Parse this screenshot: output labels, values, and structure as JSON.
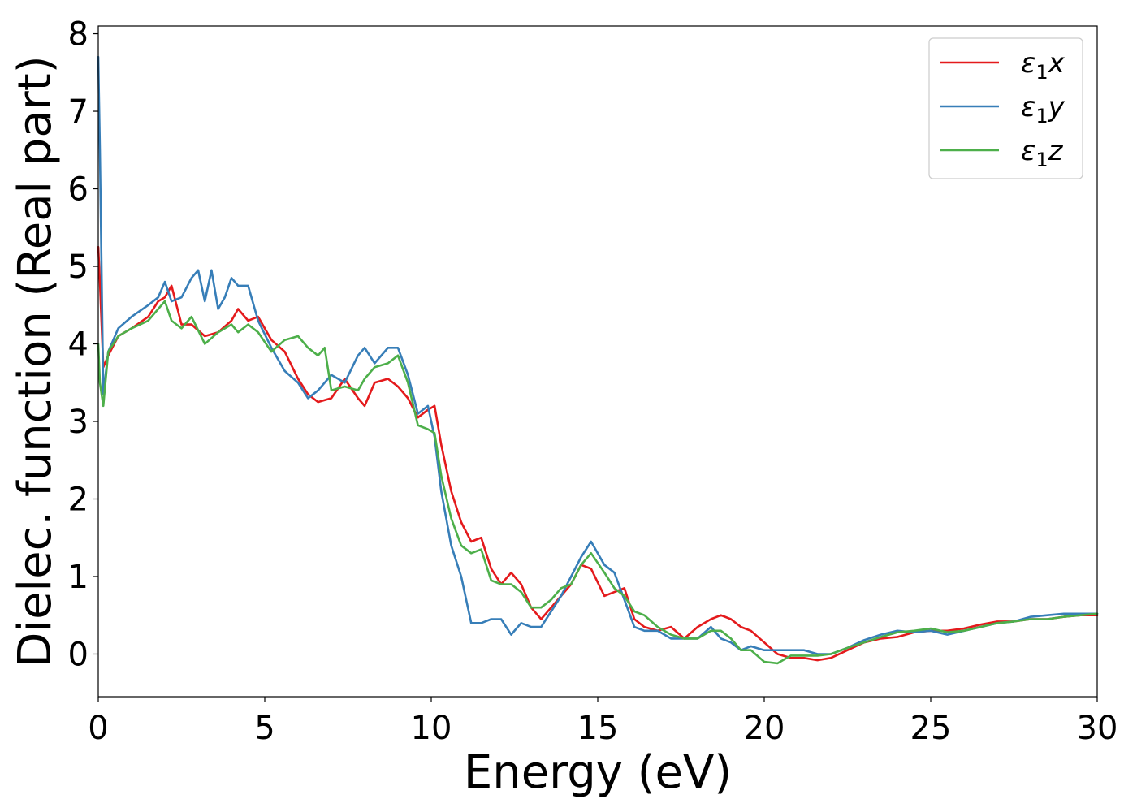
{
  "chart_data": {
    "type": "line",
    "title": "",
    "xlabel": "Energy (eV)",
    "ylabel": "Dielec. function (Real part)",
    "xlim": [
      0,
      30
    ],
    "ylim": [
      -0.55,
      8.1
    ],
    "xticks": [
      0,
      5,
      10,
      15,
      20,
      25,
      30
    ],
    "yticks": [
      0,
      1,
      2,
      3,
      4,
      5,
      6,
      7,
      8
    ],
    "grid": false,
    "legend_position": "top-right",
    "series": [
      {
        "name": "ε1x",
        "legend_main": "ε",
        "legend_sub": "1",
        "legend_suffix": "x",
        "color": "#e41a1c",
        "x": [
          0,
          0.05,
          0.15,
          0.3,
          0.6,
          1.0,
          1.5,
          1.8,
          2.0,
          2.2,
          2.5,
          2.8,
          3.2,
          3.6,
          4.0,
          4.2,
          4.5,
          4.8,
          5.2,
          5.6,
          6.0,
          6.3,
          6.6,
          7.0,
          7.4,
          7.8,
          8.0,
          8.3,
          8.7,
          9.0,
          9.3,
          9.6,
          9.9,
          10.1,
          10.3,
          10.6,
          10.9,
          11.2,
          11.5,
          11.8,
          12.1,
          12.4,
          12.7,
          13.0,
          13.3,
          13.6,
          13.9,
          14.2,
          14.5,
          14.8,
          15.2,
          15.5,
          15.8,
          16.1,
          16.4,
          16.8,
          17.2,
          17.6,
          18.0,
          18.4,
          18.7,
          19.0,
          19.3,
          19.6,
          20.0,
          20.4,
          20.8,
          21.2,
          21.6,
          22.0,
          22.5,
          23.0,
          23.5,
          24.0,
          24.5,
          25.0,
          25.5,
          26.0,
          26.5,
          27.0,
          27.5,
          28.0,
          28.5,
          29.0,
          29.5,
          30.0
        ],
        "y": [
          5.25,
          4.8,
          3.7,
          3.85,
          4.1,
          4.2,
          4.35,
          4.55,
          4.6,
          4.75,
          4.25,
          4.25,
          4.1,
          4.15,
          4.3,
          4.45,
          4.3,
          4.35,
          4.05,
          3.9,
          3.55,
          3.35,
          3.25,
          3.3,
          3.55,
          3.3,
          3.2,
          3.5,
          3.55,
          3.45,
          3.3,
          3.05,
          3.15,
          3.2,
          2.7,
          2.1,
          1.7,
          1.45,
          1.5,
          1.1,
          0.9,
          1.05,
          0.9,
          0.6,
          0.45,
          0.6,
          0.75,
          0.9,
          1.15,
          1.1,
          0.75,
          0.8,
          0.85,
          0.45,
          0.35,
          0.3,
          0.35,
          0.2,
          0.35,
          0.45,
          0.5,
          0.45,
          0.35,
          0.3,
          0.15,
          0.0,
          -0.05,
          -0.05,
          -0.08,
          -0.05,
          0.05,
          0.15,
          0.2,
          0.22,
          0.28,
          0.3,
          0.3,
          0.33,
          0.38,
          0.42,
          0.42,
          0.45,
          0.45,
          0.48,
          0.5,
          0.5
        ]
      },
      {
        "name": "ε1y",
        "legend_main": "ε",
        "legend_sub": "1",
        "legend_suffix": "y",
        "color": "#377eb8",
        "x": [
          0,
          0.05,
          0.15,
          0.3,
          0.6,
          1.0,
          1.5,
          1.8,
          2.0,
          2.2,
          2.5,
          2.8,
          3.0,
          3.2,
          3.4,
          3.6,
          3.8,
          4.0,
          4.2,
          4.5,
          4.8,
          5.2,
          5.6,
          6.0,
          6.3,
          6.6,
          7.0,
          7.4,
          7.8,
          8.0,
          8.3,
          8.7,
          9.0,
          9.3,
          9.6,
          9.9,
          10.1,
          10.3,
          10.6,
          10.9,
          11.2,
          11.5,
          11.8,
          12.1,
          12.4,
          12.7,
          13.0,
          13.3,
          13.6,
          13.9,
          14.2,
          14.5,
          14.8,
          15.2,
          15.5,
          15.8,
          16.1,
          16.4,
          16.8,
          17.2,
          17.6,
          18.0,
          18.4,
          18.7,
          19.0,
          19.3,
          19.6,
          20.0,
          20.4,
          20.8,
          21.2,
          21.6,
          22.0,
          22.5,
          23.0,
          23.5,
          24.0,
          24.5,
          25.0,
          25.5,
          26.0,
          26.5,
          27.0,
          27.5,
          28.0,
          28.5,
          29.0,
          29.5,
          30.0
        ],
        "y": [
          7.7,
          6.5,
          3.35,
          3.9,
          4.2,
          4.35,
          4.5,
          4.6,
          4.8,
          4.55,
          4.6,
          4.85,
          4.95,
          4.55,
          4.95,
          4.45,
          4.6,
          4.85,
          4.75,
          4.75,
          4.3,
          3.95,
          3.65,
          3.5,
          3.3,
          3.4,
          3.6,
          3.5,
          3.85,
          3.95,
          3.75,
          3.95,
          3.95,
          3.6,
          3.1,
          3.2,
          2.8,
          2.1,
          1.4,
          1.0,
          0.4,
          0.4,
          0.45,
          0.45,
          0.25,
          0.4,
          0.35,
          0.35,
          0.55,
          0.75,
          1.0,
          1.25,
          1.45,
          1.15,
          1.05,
          0.7,
          0.35,
          0.3,
          0.3,
          0.2,
          0.2,
          0.2,
          0.35,
          0.2,
          0.15,
          0.05,
          0.1,
          0.05,
          0.05,
          0.05,
          0.05,
          0.0,
          0.0,
          0.08,
          0.18,
          0.25,
          0.3,
          0.28,
          0.3,
          0.25,
          0.3,
          0.35,
          0.4,
          0.42,
          0.48,
          0.5,
          0.52,
          0.52,
          0.52
        ]
      },
      {
        "name": "ε1z",
        "legend_main": "ε",
        "legend_sub": "1",
        "legend_suffix": "z",
        "color": "#4daf4a",
        "x": [
          0,
          0.05,
          0.15,
          0.3,
          0.6,
          1.0,
          1.5,
          1.8,
          2.0,
          2.2,
          2.5,
          2.8,
          3.2,
          3.6,
          4.0,
          4.2,
          4.5,
          4.8,
          5.2,
          5.6,
          6.0,
          6.3,
          6.6,
          6.8,
          7.0,
          7.4,
          7.8,
          8.0,
          8.3,
          8.7,
          9.0,
          9.3,
          9.6,
          9.9,
          10.1,
          10.3,
          10.6,
          10.9,
          11.2,
          11.5,
          11.8,
          12.1,
          12.4,
          12.7,
          13.0,
          13.3,
          13.6,
          13.9,
          14.2,
          14.5,
          14.8,
          15.2,
          15.5,
          15.8,
          16.1,
          16.4,
          16.8,
          17.2,
          17.6,
          18.0,
          18.4,
          18.7,
          19.0,
          19.3,
          19.6,
          20.0,
          20.4,
          20.8,
          21.2,
          21.6,
          22.0,
          22.5,
          23.0,
          23.5,
          24.0,
          24.5,
          25.0,
          25.5,
          26.0,
          26.5,
          27.0,
          27.5,
          28.0,
          28.5,
          29.0,
          29.5,
          30.0
        ],
        "y": [
          4.0,
          3.5,
          3.2,
          3.9,
          4.1,
          4.2,
          4.3,
          4.45,
          4.55,
          4.3,
          4.2,
          4.35,
          4.0,
          4.15,
          4.25,
          4.15,
          4.25,
          4.15,
          3.9,
          4.05,
          4.1,
          3.95,
          3.85,
          3.95,
          3.4,
          3.45,
          3.4,
          3.55,
          3.7,
          3.75,
          3.85,
          3.5,
          2.95,
          2.9,
          2.85,
          2.3,
          1.75,
          1.4,
          1.3,
          1.35,
          0.95,
          0.9,
          0.9,
          0.8,
          0.6,
          0.6,
          0.7,
          0.85,
          0.9,
          1.15,
          1.3,
          1.05,
          0.85,
          0.75,
          0.55,
          0.5,
          0.35,
          0.25,
          0.2,
          0.2,
          0.3,
          0.3,
          0.2,
          0.05,
          0.05,
          -0.1,
          -0.12,
          -0.02,
          -0.02,
          -0.02,
          0.0,
          0.08,
          0.15,
          0.22,
          0.28,
          0.3,
          0.33,
          0.28,
          0.3,
          0.35,
          0.4,
          0.42,
          0.45,
          0.45,
          0.48,
          0.5,
          0.52
        ]
      }
    ]
  }
}
